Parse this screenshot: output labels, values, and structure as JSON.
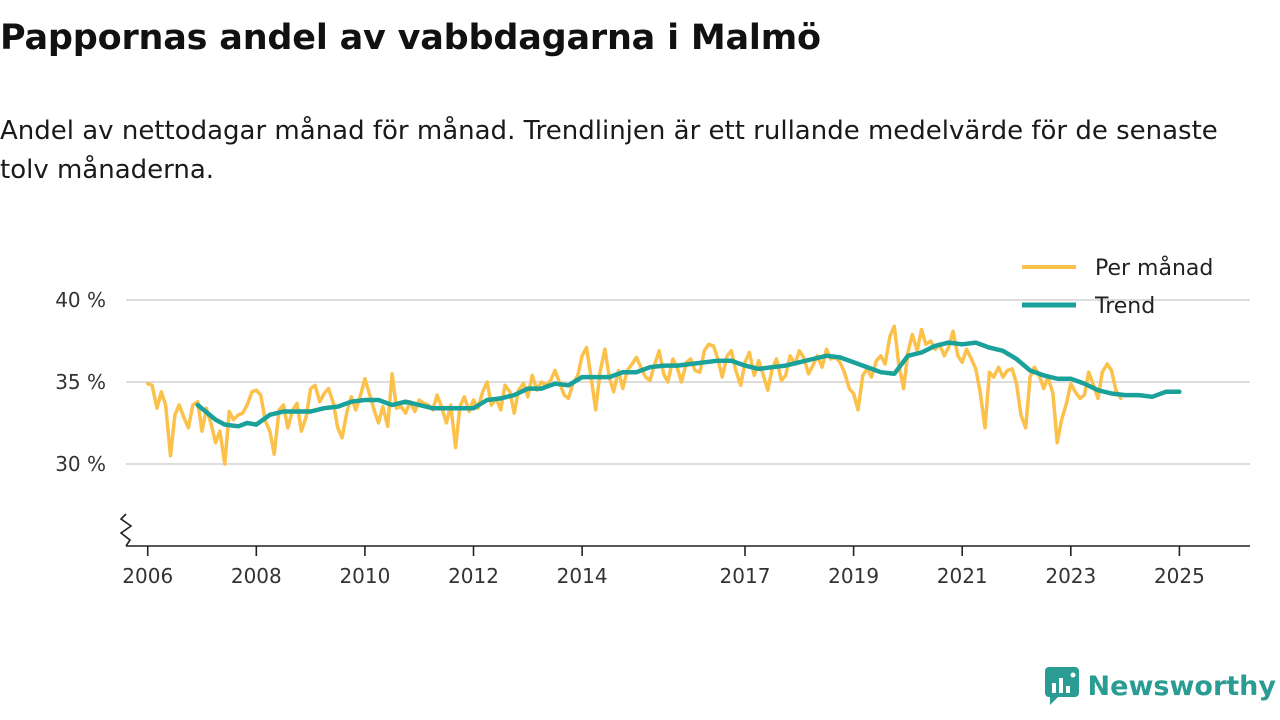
{
  "header": {
    "title": "Pappornas andel av vabbdagarna i Malmö",
    "subtitle": "Andel av nettodagar månad för månad. Trendlinjen är ett rullande medelvärde för de senaste tolv månaderna."
  },
  "brand": {
    "name": "Newsworthy",
    "color": "#2b9c93"
  },
  "chart_data": {
    "type": "line",
    "title": "Pappornas andel av vabbdagarna i Malmö",
    "xlabel": "",
    "ylabel": "",
    "xlim": [
      2005.6,
      2026.3
    ],
    "ylim": [
      25,
      40
    ],
    "y_ticks": [
      {
        "value": 30,
        "label": "30 %"
      },
      {
        "value": 35,
        "label": "35 %"
      },
      {
        "value": 40,
        "label": "40 %"
      }
    ],
    "x_ticks": [
      {
        "value": 2006,
        "label": "2006"
      },
      {
        "value": 2008,
        "label": "2008"
      },
      {
        "value": 2010,
        "label": "2010"
      },
      {
        "value": 2012,
        "label": "2012"
      },
      {
        "value": 2014,
        "label": "2014"
      },
      {
        "value": 2017,
        "label": "2017"
      },
      {
        "value": 2019,
        "label": "2019"
      },
      {
        "value": 2021,
        "label": "2021"
      },
      {
        "value": 2023,
        "label": "2023"
      },
      {
        "value": 2025,
        "label": "2025"
      }
    ],
    "grid": true,
    "axis_break": true,
    "legend_position": "top-right",
    "series": [
      {
        "name": "Per månad",
        "color": "#fbc14a",
        "points": [
          [
            2006.0,
            34.9
          ],
          [
            2006.08,
            34.8
          ],
          [
            2006.17,
            33.4
          ],
          [
            2006.25,
            34.4
          ],
          [
            2006.33,
            33.6
          ],
          [
            2006.42,
            30.5
          ],
          [
            2006.5,
            33.0
          ],
          [
            2006.58,
            33.6
          ],
          [
            2006.67,
            32.8
          ],
          [
            2006.75,
            32.2
          ],
          [
            2006.83,
            33.6
          ],
          [
            2006.92,
            33.8
          ],
          [
            2007.0,
            32.0
          ],
          [
            2007.08,
            33.4
          ],
          [
            2007.17,
            32.4
          ],
          [
            2007.25,
            31.3
          ],
          [
            2007.33,
            32.0
          ],
          [
            2007.42,
            30.0
          ],
          [
            2007.5,
            33.2
          ],
          [
            2007.58,
            32.7
          ],
          [
            2007.67,
            33.0
          ],
          [
            2007.75,
            33.1
          ],
          [
            2007.83,
            33.6
          ],
          [
            2007.92,
            34.4
          ],
          [
            2008.0,
            34.5
          ],
          [
            2008.08,
            34.2
          ],
          [
            2008.17,
            32.6
          ],
          [
            2008.25,
            32.0
          ],
          [
            2008.33,
            30.6
          ],
          [
            2008.42,
            33.3
          ],
          [
            2008.5,
            33.6
          ],
          [
            2008.58,
            32.2
          ],
          [
            2008.67,
            33.3
          ],
          [
            2008.75,
            33.7
          ],
          [
            2008.83,
            32.0
          ],
          [
            2008.92,
            32.9
          ],
          [
            2009.0,
            34.6
          ],
          [
            2009.08,
            34.8
          ],
          [
            2009.17,
            33.8
          ],
          [
            2009.25,
            34.3
          ],
          [
            2009.33,
            34.6
          ],
          [
            2009.42,
            33.7
          ],
          [
            2009.5,
            32.2
          ],
          [
            2009.58,
            31.6
          ],
          [
            2009.67,
            33.2
          ],
          [
            2009.75,
            34.1
          ],
          [
            2009.83,
            33.3
          ],
          [
            2009.92,
            34.2
          ],
          [
            2010.0,
            35.2
          ],
          [
            2010.08,
            34.3
          ],
          [
            2010.17,
            33.3
          ],
          [
            2010.25,
            32.5
          ],
          [
            2010.33,
            33.5
          ],
          [
            2010.42,
            32.3
          ],
          [
            2010.5,
            35.5
          ],
          [
            2010.58,
            33.4
          ],
          [
            2010.67,
            33.5
          ],
          [
            2010.75,
            33.1
          ],
          [
            2010.83,
            33.8
          ],
          [
            2010.92,
            33.2
          ],
          [
            2011.0,
            33.9
          ],
          [
            2011.08,
            33.7
          ],
          [
            2011.17,
            33.6
          ],
          [
            2011.25,
            33.3
          ],
          [
            2011.33,
            34.2
          ],
          [
            2011.42,
            33.4
          ],
          [
            2011.5,
            32.5
          ],
          [
            2011.58,
            33.6
          ],
          [
            2011.67,
            31.0
          ],
          [
            2011.75,
            33.5
          ],
          [
            2011.83,
            34.1
          ],
          [
            2011.92,
            33.2
          ],
          [
            2012.0,
            33.9
          ],
          [
            2012.08,
            33.4
          ],
          [
            2012.17,
            34.4
          ],
          [
            2012.25,
            35.0
          ],
          [
            2012.33,
            33.6
          ],
          [
            2012.42,
            34.0
          ],
          [
            2012.5,
            33.3
          ],
          [
            2012.58,
            34.8
          ],
          [
            2012.67,
            34.4
          ],
          [
            2012.75,
            33.1
          ],
          [
            2012.83,
            34.5
          ],
          [
            2012.92,
            34.9
          ],
          [
            2013.0,
            34.1
          ],
          [
            2013.08,
            35.4
          ],
          [
            2013.17,
            34.5
          ],
          [
            2013.25,
            35.0
          ],
          [
            2013.33,
            34.8
          ],
          [
            2013.42,
            35.1
          ],
          [
            2013.5,
            35.7
          ],
          [
            2013.58,
            35.0
          ],
          [
            2013.67,
            34.2
          ],
          [
            2013.75,
            34.0
          ],
          [
            2013.83,
            34.9
          ],
          [
            2013.92,
            35.4
          ],
          [
            2014.0,
            36.6
          ],
          [
            2014.08,
            37.1
          ],
          [
            2014.17,
            35.2
          ],
          [
            2014.25,
            33.3
          ],
          [
            2014.33,
            35.6
          ],
          [
            2014.42,
            37.0
          ],
          [
            2014.5,
            35.3
          ],
          [
            2014.58,
            34.4
          ],
          [
            2014.67,
            35.7
          ],
          [
            2014.75,
            34.6
          ],
          [
            2014.83,
            35.7
          ],
          [
            2014.92,
            36.1
          ],
          [
            2015.0,
            36.5
          ],
          [
            2015.08,
            35.9
          ],
          [
            2015.17,
            35.3
          ],
          [
            2015.25,
            35.1
          ],
          [
            2015.33,
            36.0
          ],
          [
            2015.42,
            36.9
          ],
          [
            2015.5,
            35.5
          ],
          [
            2015.58,
            35.0
          ],
          [
            2015.67,
            36.4
          ],
          [
            2015.75,
            35.9
          ],
          [
            2015.83,
            35.0
          ],
          [
            2015.92,
            36.2
          ],
          [
            2016.0,
            36.4
          ],
          [
            2016.08,
            35.7
          ],
          [
            2016.17,
            35.6
          ],
          [
            2016.25,
            36.9
          ],
          [
            2016.33,
            37.3
          ],
          [
            2016.42,
            37.2
          ],
          [
            2016.5,
            36.4
          ],
          [
            2016.58,
            35.3
          ],
          [
            2016.67,
            36.6
          ],
          [
            2016.75,
            36.9
          ],
          [
            2016.83,
            35.7
          ],
          [
            2016.92,
            34.8
          ],
          [
            2017.0,
            36.2
          ],
          [
            2017.08,
            36.8
          ],
          [
            2017.17,
            35.4
          ],
          [
            2017.25,
            36.3
          ],
          [
            2017.33,
            35.5
          ],
          [
            2017.42,
            34.5
          ],
          [
            2017.5,
            35.8
          ],
          [
            2017.58,
            36.4
          ],
          [
            2017.67,
            35.1
          ],
          [
            2017.75,
            35.4
          ],
          [
            2017.83,
            36.6
          ],
          [
            2017.92,
            36.1
          ],
          [
            2018.0,
            36.9
          ],
          [
            2018.08,
            36.5
          ],
          [
            2018.17,
            35.5
          ],
          [
            2018.25,
            36.0
          ],
          [
            2018.33,
            36.6
          ],
          [
            2018.42,
            35.9
          ],
          [
            2018.5,
            37.0
          ],
          [
            2018.58,
            36.4
          ],
          [
            2018.67,
            36.5
          ],
          [
            2018.75,
            36.2
          ],
          [
            2018.83,
            35.6
          ],
          [
            2018.92,
            34.6
          ],
          [
            2019.0,
            34.3
          ],
          [
            2019.08,
            33.3
          ],
          [
            2019.17,
            35.4
          ],
          [
            2019.25,
            35.8
          ],
          [
            2019.33,
            35.3
          ],
          [
            2019.42,
            36.3
          ],
          [
            2019.5,
            36.6
          ],
          [
            2019.58,
            36.1
          ],
          [
            2019.67,
            37.8
          ],
          [
            2019.75,
            38.4
          ],
          [
            2019.83,
            36.1
          ],
          [
            2019.92,
            34.6
          ],
          [
            2020.0,
            36.8
          ],
          [
            2020.08,
            37.9
          ],
          [
            2020.17,
            36.9
          ],
          [
            2020.25,
            38.2
          ],
          [
            2020.33,
            37.3
          ],
          [
            2020.42,
            37.5
          ],
          [
            2020.5,
            37.0
          ],
          [
            2020.58,
            37.3
          ],
          [
            2020.67,
            36.6
          ],
          [
            2020.75,
            37.1
          ],
          [
            2020.83,
            38.1
          ],
          [
            2020.92,
            36.6
          ],
          [
            2021.0,
            36.2
          ],
          [
            2021.08,
            37.0
          ],
          [
            2021.17,
            36.4
          ],
          [
            2021.25,
            35.8
          ],
          [
            2021.33,
            34.4
          ],
          [
            2021.42,
            32.2
          ],
          [
            2021.5,
            35.6
          ],
          [
            2021.58,
            35.3
          ],
          [
            2021.67,
            35.9
          ],
          [
            2021.75,
            35.3
          ],
          [
            2021.83,
            35.7
          ],
          [
            2021.92,
            35.8
          ],
          [
            2022.0,
            34.9
          ],
          [
            2022.08,
            33.0
          ],
          [
            2022.17,
            32.2
          ],
          [
            2022.25,
            35.3
          ],
          [
            2022.33,
            35.9
          ],
          [
            2022.42,
            35.4
          ],
          [
            2022.5,
            34.6
          ],
          [
            2022.58,
            35.3
          ],
          [
            2022.67,
            34.3
          ],
          [
            2022.75,
            31.3
          ],
          [
            2022.83,
            32.7
          ],
          [
            2022.92,
            33.7
          ],
          [
            2023.0,
            34.9
          ],
          [
            2023.08,
            34.4
          ],
          [
            2023.17,
            34.0
          ],
          [
            2023.25,
            34.2
          ],
          [
            2023.33,
            35.6
          ],
          [
            2023.42,
            34.8
          ],
          [
            2023.5,
            34.0
          ],
          [
            2023.58,
            35.6
          ],
          [
            2023.67,
            36.1
          ],
          [
            2023.75,
            35.7
          ],
          [
            2023.83,
            34.5
          ],
          [
            2023.92,
            34.0
          ]
        ]
      },
      {
        "name": "Trend",
        "color": "#1aa199",
        "points": [
          [
            2006.92,
            33.6
          ],
          [
            2007.25,
            32.7
          ],
          [
            2007.42,
            32.4
          ],
          [
            2007.67,
            32.3
          ],
          [
            2007.83,
            32.5
          ],
          [
            2008.0,
            32.4
          ],
          [
            2008.25,
            33.0
          ],
          [
            2008.5,
            33.2
          ],
          [
            2008.75,
            33.2
          ],
          [
            2009.0,
            33.2
          ],
          [
            2009.25,
            33.4
          ],
          [
            2009.5,
            33.5
          ],
          [
            2009.75,
            33.8
          ],
          [
            2010.0,
            33.9
          ],
          [
            2010.25,
            33.9
          ],
          [
            2010.5,
            33.6
          ],
          [
            2010.75,
            33.8
          ],
          [
            2011.0,
            33.6
          ],
          [
            2011.25,
            33.4
          ],
          [
            2011.5,
            33.4
          ],
          [
            2011.75,
            33.4
          ],
          [
            2012.0,
            33.4
          ],
          [
            2012.25,
            33.9
          ],
          [
            2012.5,
            34.0
          ],
          [
            2012.75,
            34.2
          ],
          [
            2013.0,
            34.6
          ],
          [
            2013.25,
            34.6
          ],
          [
            2013.5,
            34.9
          ],
          [
            2013.75,
            34.8
          ],
          [
            2014.0,
            35.3
          ],
          [
            2014.25,
            35.3
          ],
          [
            2014.5,
            35.3
          ],
          [
            2014.75,
            35.6
          ],
          [
            2015.0,
            35.6
          ],
          [
            2015.25,
            35.9
          ],
          [
            2015.5,
            36.0
          ],
          [
            2015.75,
            36.0
          ],
          [
            2016.0,
            36.1
          ],
          [
            2016.25,
            36.2
          ],
          [
            2016.5,
            36.3
          ],
          [
            2016.75,
            36.3
          ],
          [
            2017.0,
            36.0
          ],
          [
            2017.25,
            35.8
          ],
          [
            2017.5,
            35.9
          ],
          [
            2017.75,
            36.0
          ],
          [
            2018.0,
            36.2
          ],
          [
            2018.25,
            36.4
          ],
          [
            2018.5,
            36.6
          ],
          [
            2018.75,
            36.5
          ],
          [
            2019.0,
            36.2
          ],
          [
            2019.25,
            35.9
          ],
          [
            2019.5,
            35.6
          ],
          [
            2019.75,
            35.5
          ],
          [
            2020.0,
            36.6
          ],
          [
            2020.25,
            36.8
          ],
          [
            2020.5,
            37.2
          ],
          [
            2020.75,
            37.4
          ],
          [
            2021.0,
            37.3
          ],
          [
            2021.25,
            37.4
          ],
          [
            2021.5,
            37.1
          ],
          [
            2021.75,
            36.9
          ],
          [
            2022.0,
            36.4
          ],
          [
            2022.25,
            35.7
          ],
          [
            2022.5,
            35.4
          ],
          [
            2022.75,
            35.2
          ],
          [
            2023.0,
            35.2
          ],
          [
            2023.25,
            34.9
          ],
          [
            2023.5,
            34.5
          ],
          [
            2023.75,
            34.3
          ],
          [
            2024.0,
            34.2
          ],
          [
            2024.25,
            34.2
          ],
          [
            2024.5,
            34.1
          ],
          [
            2024.75,
            34.4
          ],
          [
            2025.0,
            34.4
          ]
        ]
      }
    ]
  }
}
